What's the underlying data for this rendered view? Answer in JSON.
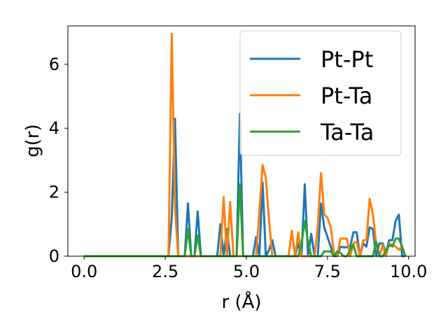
{
  "chart_data": {
    "type": "line",
    "xlabel": "r (Å)",
    "ylabel": "g(r)",
    "xlim": [
      -0.5,
      10.2
    ],
    "ylim": [
      0,
      7.2
    ],
    "xticks": [
      "0.0",
      "2.5",
      "5.0",
      "7.5",
      "10.0"
    ],
    "yticks": [
      "0",
      "2",
      "4",
      "6"
    ],
    "grid": false,
    "legend_position": "top-right",
    "series": [
      {
        "name": "Pt-Pt",
        "color": "#1f77b4",
        "x": [
          0.0,
          2.6,
          2.7,
          2.8,
          2.9,
          3.0,
          3.1,
          3.2,
          3.3,
          3.4,
          3.5,
          3.6,
          3.7,
          4.1,
          4.2,
          4.3,
          4.4,
          4.5,
          4.6,
          4.7,
          4.8,
          4.9,
          5.0,
          5.2,
          5.3,
          5.4,
          5.5,
          5.6,
          5.7,
          5.8,
          5.9,
          6.0,
          6.5,
          6.6,
          6.7,
          6.8,
          6.9,
          7.0,
          7.1,
          7.2,
          7.3,
          7.4,
          7.5,
          7.6,
          7.7,
          7.8,
          7.9,
          8.0,
          8.1,
          8.2,
          8.3,
          8.4,
          8.5,
          8.6,
          8.7,
          8.8,
          8.9,
          9.0,
          9.1,
          9.2,
          9.3,
          9.4,
          9.5,
          9.6,
          9.7,
          9.8,
          9.9
        ],
        "y": [
          0,
          0,
          1.2,
          4.3,
          0,
          0,
          0,
          1.65,
          0,
          0,
          1.4,
          0,
          0,
          0,
          1.0,
          0,
          0.85,
          0,
          0,
          0,
          4.45,
          0,
          0,
          0,
          0.6,
          0,
          2.3,
          0,
          0.2,
          0.5,
          0,
          0,
          0,
          0.4,
          0,
          2.25,
          0,
          0.7,
          0,
          0,
          1.65,
          0.9,
          0.6,
          0.3,
          0,
          0,
          0.3,
          0.28,
          0.28,
          0.3,
          0.75,
          0.75,
          0,
          0.4,
          0.3,
          0.9,
          0.85,
          0,
          0.4,
          0.4,
          0.1,
          0.5,
          0.5,
          1.1,
          1.3,
          0,
          0
        ]
      },
      {
        "name": "Pt-Ta",
        "color": "#ff7f0e",
        "x": [
          0.0,
          2.6,
          2.7,
          2.8,
          2.9,
          3.0,
          4.2,
          4.3,
          4.4,
          4.5,
          4.6,
          5.3,
          5.4,
          5.5,
          5.6,
          5.7,
          5.8,
          6.3,
          6.4,
          6.5,
          6.6,
          6.7,
          6.8,
          7.1,
          7.2,
          7.3,
          7.4,
          7.5,
          7.6,
          7.7,
          7.8,
          7.9,
          8.0,
          8.1,
          8.2,
          8.3,
          8.4,
          8.5,
          8.6,
          8.7,
          8.8,
          8.9,
          9.0,
          9.1,
          9.2,
          9.3,
          9.4,
          9.5,
          9.6,
          9.7,
          9.8,
          9.9
        ],
        "y": [
          0,
          0,
          6.95,
          1.5,
          0,
          0,
          0,
          1.85,
          0,
          1.7,
          0,
          0,
          1.4,
          2.85,
          2.45,
          1.1,
          0,
          0,
          0.8,
          0,
          0.75,
          0,
          0,
          0,
          0.9,
          2.6,
          1.3,
          1.2,
          0.9,
          0.1,
          0,
          0.55,
          0.55,
          0.55,
          0,
          0.4,
          0.45,
          0,
          0.5,
          0.5,
          1.8,
          1.3,
          0.4,
          0,
          0.35,
          0,
          0.4,
          0.35,
          0.3,
          0.2,
          0.3,
          0
        ]
      },
      {
        "name": "Ta-Ta",
        "color": "#2ca02c",
        "x": [
          0.0,
          3.0,
          3.1,
          3.2,
          3.3,
          3.4,
          3.5,
          3.6,
          3.7,
          4.7,
          4.8,
          4.9,
          5.0,
          6.5,
          6.6,
          6.7,
          6.8,
          6.9,
          7.0,
          7.3,
          7.4,
          7.5,
          7.6,
          7.7,
          7.8,
          7.9,
          8.0,
          8.1,
          8.2,
          8.3,
          8.4,
          8.5,
          8.6,
          8.7,
          8.8,
          8.9,
          9.0,
          9.1,
          9.2,
          9.3,
          9.4,
          9.5,
          9.6,
          9.7,
          9.8,
          9.9
        ],
        "y": [
          0,
          0,
          0,
          0.85,
          0,
          0,
          0.65,
          0,
          0,
          0,
          2.25,
          0,
          0,
          0,
          0,
          0.4,
          1.1,
          0.45,
          0,
          0,
          0.15,
          0.15,
          0.15,
          0,
          0.15,
          0.1,
          0,
          0,
          0.2,
          0.35,
          0,
          0,
          0,
          0,
          0,
          0,
          0.45,
          0,
          0,
          0.15,
          0.35,
          0.3,
          0.55,
          0.55,
          0.3,
          0
        ]
      }
    ]
  }
}
